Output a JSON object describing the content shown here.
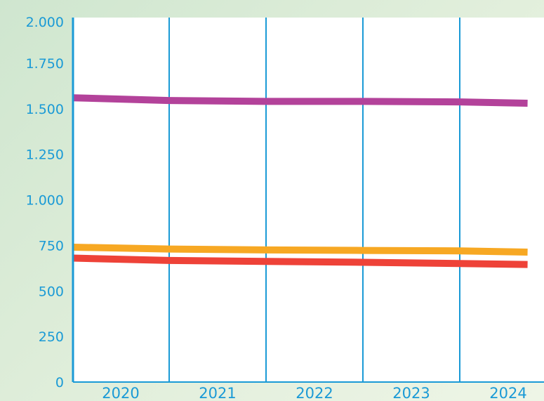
{
  "chart_data": {
    "type": "line",
    "title": "",
    "xlabel": "",
    "ylabel": "",
    "categories": [
      "2020",
      "2021",
      "2022",
      "2023",
      "2024"
    ],
    "ylim": [
      0,
      2000
    ],
    "y_ticks": [
      {
        "value": 0,
        "label": "0"
      },
      {
        "value": 250,
        "label": "250"
      },
      {
        "value": 500,
        "label": "500"
      },
      {
        "value": 750,
        "label": "750"
      },
      {
        "value": 1000,
        "label": "1.000"
      },
      {
        "value": 1250,
        "label": "1.250"
      },
      {
        "value": 1500,
        "label": "1.500"
      },
      {
        "value": 1750,
        "label": "1.750"
      },
      {
        "value": 2000,
        "label": "2.000"
      }
    ],
    "x_values": [
      2019.5,
      2020.5,
      2021.5,
      2022.5,
      2023.5,
      2024.2
    ],
    "series": [
      {
        "color": "#b3429a",
        "values": [
          1560,
          1545,
          1540,
          1540,
          1537,
          1530
        ]
      },
      {
        "color": "#f7a823",
        "values": [
          740,
          730,
          725,
          722,
          720,
          713
        ]
      },
      {
        "color": "#ee4238",
        "values": [
          680,
          667,
          662,
          657,
          650,
          645
        ]
      }
    ],
    "grid": {
      "vertical": true,
      "horizontal": false
    },
    "colors": {
      "axis": "#1a9ad6",
      "grid": "#1a9ad6",
      "plot_background": "#ffffff"
    }
  }
}
